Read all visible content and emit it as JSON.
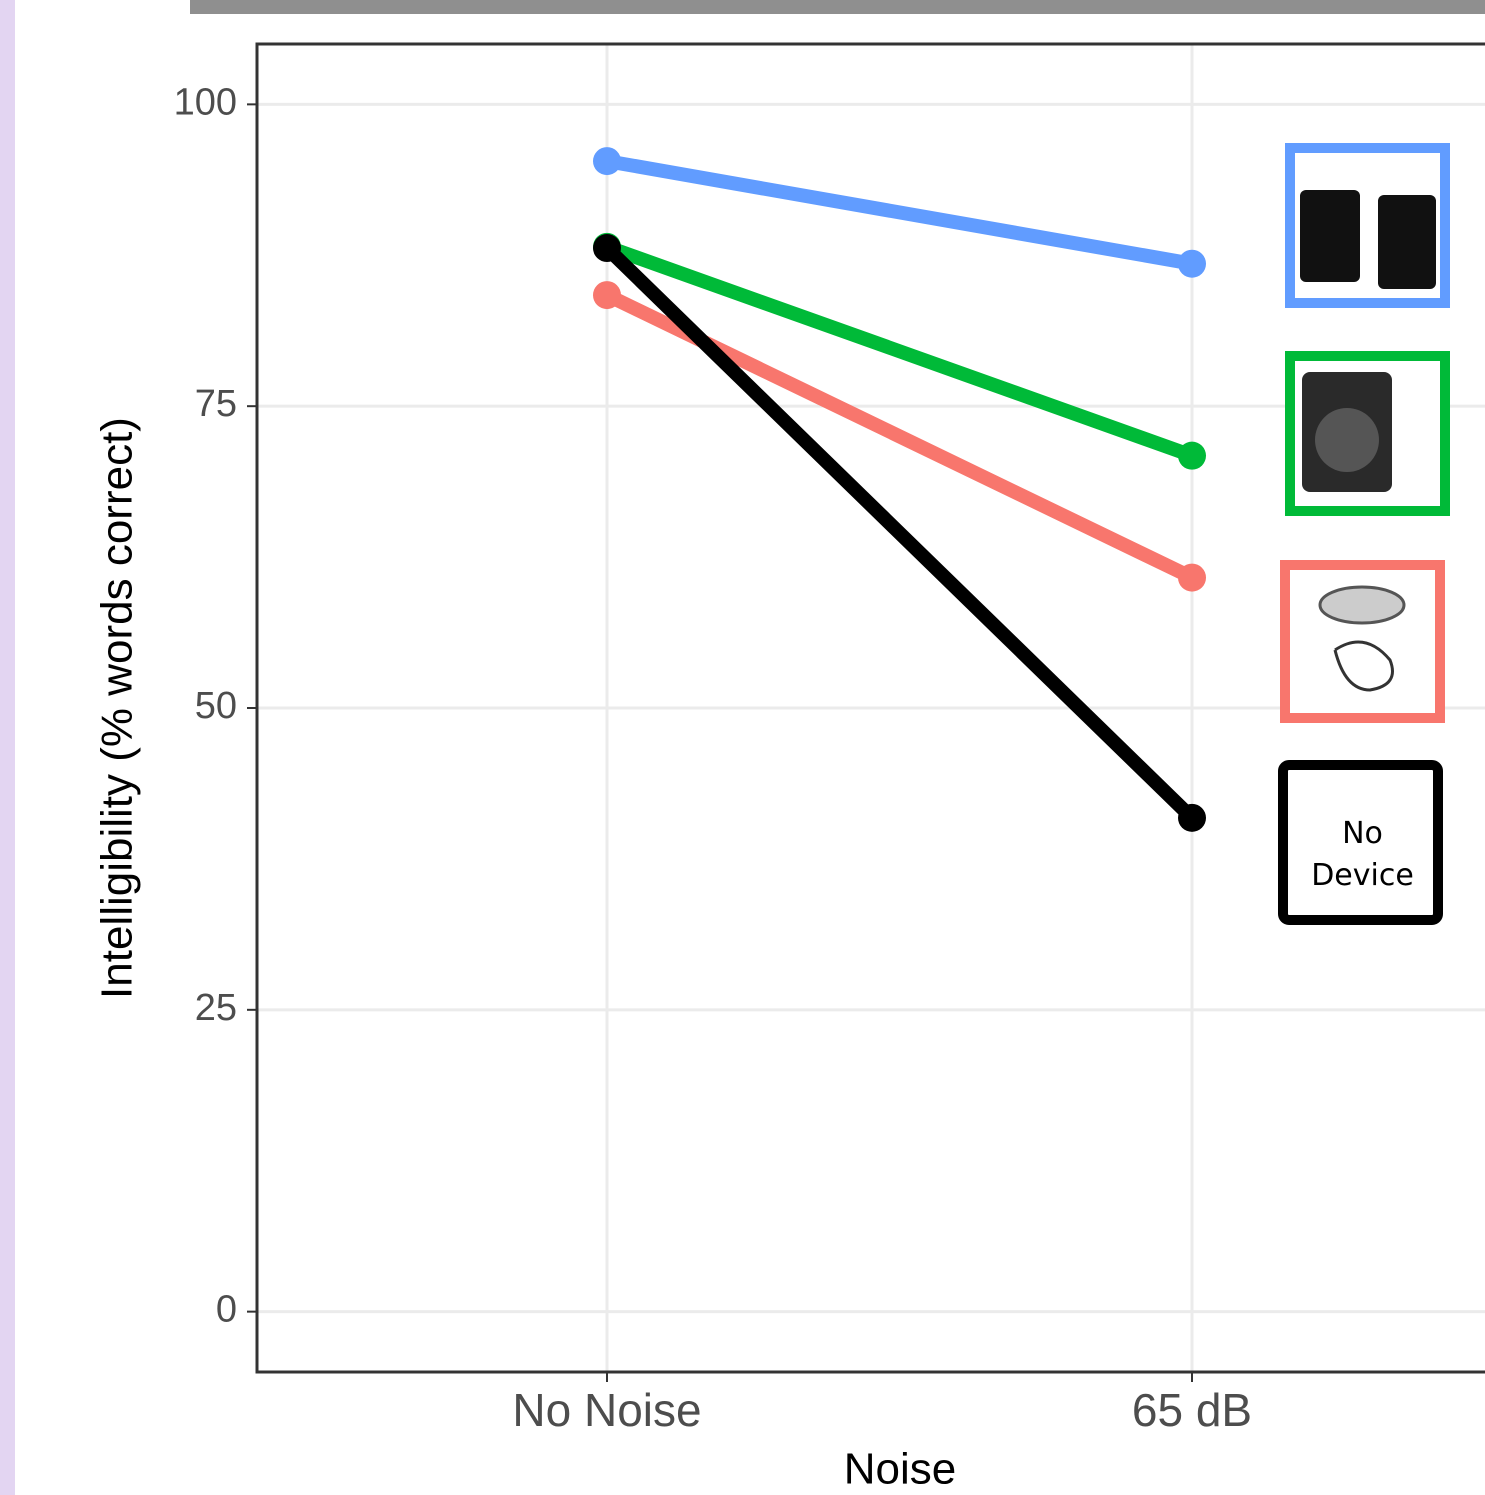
{
  "chart_data": {
    "type": "line",
    "x_label": "Noise",
    "y_label": "Intelligibility (% words correct)",
    "categories": [
      "No Noise",
      "65 dB"
    ],
    "series": [
      {
        "color": "#619cff",
        "values": [
          95.3,
          86.8
        ]
      },
      {
        "color": "#00ba38",
        "values": [
          88.2,
          70.9
        ]
      },
      {
        "color": "#f8766d",
        "values": [
          84.2,
          60.8
        ]
      },
      {
        "name": "No Device",
        "color": "#000000",
        "values": [
          88.1,
          40.9
        ]
      }
    ],
    "ylim": [
      -5,
      105
    ],
    "yticks": [
      0,
      25,
      50,
      75,
      100
    ],
    "grid": true
  }
}
